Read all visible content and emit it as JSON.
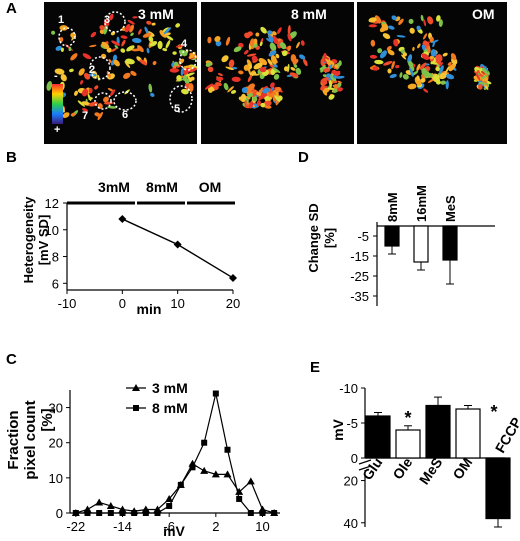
{
  "panel_letters": {
    "a": "A",
    "b": "B",
    "c": "C",
    "d": "D",
    "e": "E"
  },
  "micrographs": [
    {
      "label": "3 mM",
      "roi_numbers": [
        "1",
        "2",
        "3",
        "4",
        "5",
        "6",
        "7"
      ]
    },
    {
      "label": "8 mM"
    },
    {
      "label": "OM"
    }
  ],
  "colorbar": {
    "top": "-",
    "bottom": "+"
  },
  "chart_data": [
    {
      "panel": "B",
      "type": "line",
      "ylabel_line1": "Heterogeneity",
      "ylabel_line2": "[mV SD]",
      "xlabel": "min",
      "x": [
        0,
        10,
        20
      ],
      "y": [
        10.8,
        8.9,
        6.4
      ],
      "xticks": [
        "-10",
        "0",
        "10",
        "20"
      ],
      "xtick_values": [
        -10,
        0,
        10,
        20
      ],
      "yticks": [
        "6",
        "8",
        "10",
        "12"
      ],
      "ytick_values": [
        6,
        8,
        10,
        12
      ],
      "xlim": [
        -10,
        20
      ],
      "ylim": [
        5.5,
        12
      ],
      "conditions": [
        "3mM",
        "8mM",
        "OM"
      ]
    },
    {
      "panel": "D",
      "type": "bar",
      "ylabel_line1": "Change SD",
      "ylabel_line2": "[%]",
      "categories": [
        "8mM",
        "16mM",
        "MeS"
      ],
      "values": [
        -10,
        -18,
        -17
      ],
      "errors": [
        4,
        4,
        12
      ],
      "fills": [
        "#000000",
        "#ffffff",
        "#000000"
      ],
      "yticks": [
        "-5",
        "-15",
        "-25",
        "-35"
      ],
      "ytick_values": [
        -5,
        -15,
        -25,
        -35
      ],
      "ylim": [
        0,
        -40
      ]
    },
    {
      "panel": "C",
      "type": "line",
      "ylabel_line1": "Fraction",
      "ylabel_line2": "pixel count",
      "ylabel_line3": "[%]",
      "xlabel": "mV",
      "xticks": [
        "-22",
        "-14",
        "-6",
        "2",
        "10"
      ],
      "xtick_values": [
        -22,
        -14,
        -6,
        2,
        10
      ],
      "yticks": [
        "0",
        "10",
        "20",
        "30"
      ],
      "ytick_values": [
        0,
        10,
        20,
        30
      ],
      "xlim": [
        -23,
        13
      ],
      "ylim": [
        0,
        35
      ],
      "series": [
        {
          "name": "3 mM",
          "marker": "triangle",
          "x": [
            -22,
            -20,
            -18,
            -16,
            -14,
            -12,
            -10,
            -8,
            -6,
            -4,
            -2,
            0,
            2,
            4,
            6,
            8,
            10,
            12
          ],
          "y": [
            0,
            1,
            3,
            2,
            1,
            0.5,
            1,
            1,
            4,
            8,
            14,
            12,
            11,
            11,
            6,
            9,
            1,
            0
          ]
        },
        {
          "name": "8 mM",
          "marker": "square",
          "x": [
            -22,
            -20,
            -18,
            -16,
            -14,
            -12,
            -10,
            -8,
            -6,
            -4,
            -2,
            0,
            2,
            4,
            6,
            8,
            10,
            12
          ],
          "y": [
            0,
            0,
            0,
            0,
            0,
            0,
            0,
            0,
            2,
            8,
            13,
            20,
            34,
            18,
            4,
            0,
            0,
            0
          ]
        }
      ]
    },
    {
      "panel": "E",
      "type": "bar",
      "ylabel": "mV",
      "categories": [
        "Glu",
        "Ole",
        "MeS",
        "OM",
        "FCCP"
      ],
      "values": [
        -6,
        -4,
        -7.5,
        -7,
        38
      ],
      "errors": [
        0.5,
        0.6,
        1.2,
        0.5,
        4
      ],
      "fills": [
        "#000000",
        "#ffffff",
        "#000000",
        "#ffffff",
        "#000000"
      ],
      "significant": [
        "",
        "*",
        "",
        "",
        "*"
      ],
      "yticks_top": [
        "-10",
        "-5",
        "0"
      ],
      "ytick_values_top": [
        -10,
        -5,
        0
      ],
      "yticks_bottom": [
        "20",
        "40"
      ],
      "ytick_values_bottom": [
        20,
        40
      ],
      "ylim_top": [
        -10,
        0
      ],
      "ylim_bottom": [
        15,
        42
      ],
      "axis_break": true
    }
  ]
}
